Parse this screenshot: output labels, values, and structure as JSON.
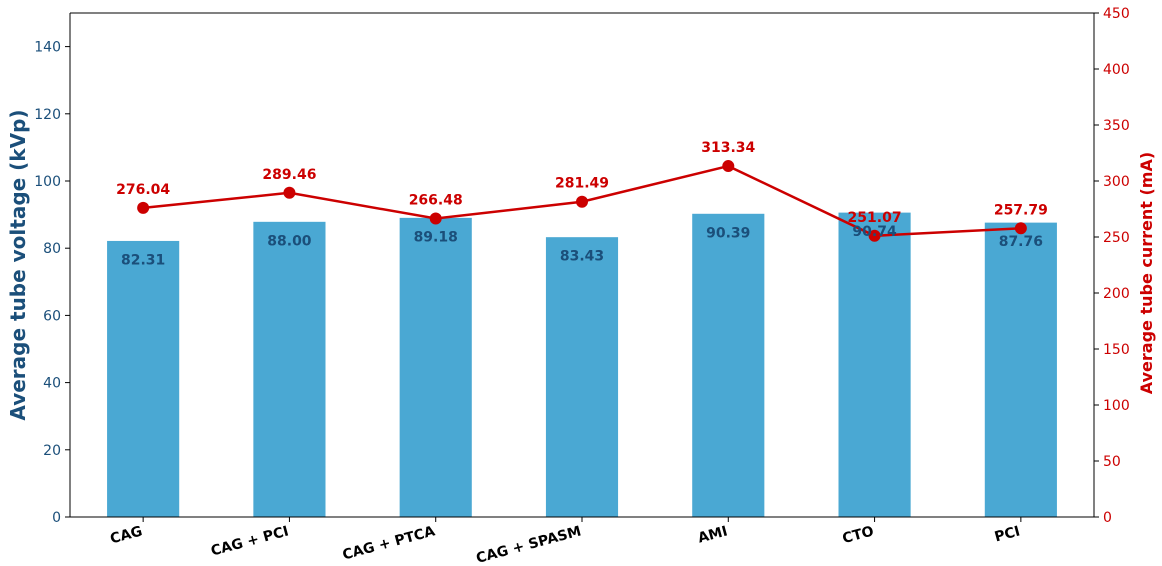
{
  "chart_data": {
    "type": "bar",
    "categories": [
      "CAG",
      "CAG + PCI",
      "CAG + PTCA",
      "CAG + SPASM",
      "AMI",
      "CTO",
      "PCI"
    ],
    "series": [
      {
        "type": "bar",
        "axis": "left",
        "values": [
          82.31,
          88.0,
          89.18,
          83.43,
          90.39,
          90.74,
          87.76
        ],
        "labels": [
          "82.31",
          "88.00",
          "89.18",
          "83.43",
          "90.39",
          "90.74",
          "87.76"
        ],
        "color": "#4aa8d3",
        "label_color": "#1b4f7a"
      },
      {
        "type": "line",
        "axis": "right",
        "values": [
          276.04,
          289.46,
          266.48,
          281.49,
          313.34,
          251.07,
          257.79
        ],
        "labels": [
          "276.04",
          "289.46",
          "266.48",
          "281.49",
          "313.34",
          "251.07",
          "257.79"
        ],
        "color": "#cc0000"
      }
    ],
    "ylabel": "Average tube voltage (kVp)",
    "y2label": "Average tube current (mA)",
    "ylim": [
      0,
      150
    ],
    "y2lim": [
      0,
      450
    ],
    "yticks": [
      "0",
      "20",
      "40",
      "60",
      "80",
      "100",
      "120",
      "140"
    ],
    "y2ticks": [
      "0",
      "50",
      "100",
      "150",
      "200",
      "250",
      "300",
      "350",
      "400",
      "450"
    ],
    "colors": {
      "left_axis": "#1b4f7a",
      "right_axis": "#cc0000"
    },
    "grid": false
  }
}
